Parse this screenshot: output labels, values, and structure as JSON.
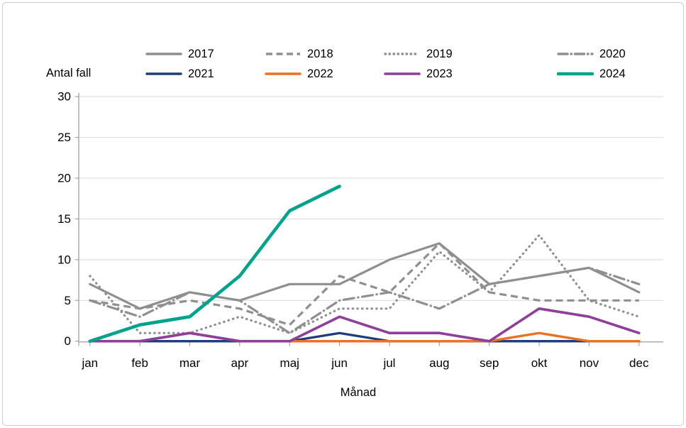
{
  "page": {
    "background": "#ffffff",
    "border_color": "#c9cdd1"
  },
  "chart_data": {
    "type": "line",
    "title": "",
    "ylabel": "Antal fall",
    "xlabel": "Månad",
    "categories": [
      "jan",
      "feb",
      "mar",
      "apr",
      "maj",
      "jun",
      "jul",
      "aug",
      "sep",
      "okt",
      "nov",
      "dec"
    ],
    "y_ticks": [
      0,
      5,
      10,
      15,
      20,
      25,
      30
    ],
    "ylim": [
      0,
      30
    ],
    "grid": "horizontal",
    "legend_position": "top-two-rows",
    "legend_rows": [
      [
        "2017",
        "2018",
        "2019",
        "2020"
      ],
      [
        "2021",
        "2022",
        "2023",
        "2024"
      ]
    ],
    "axis_color": "#a6a6a6",
    "gridline_color": "#d9d9d9",
    "series": [
      {
        "name": "2017",
        "color": "#8f8f8f",
        "style": "solid",
        "width": 3.2,
        "values": [
          7,
          4,
          6,
          5,
          7,
          7,
          10,
          12,
          7,
          8,
          9,
          6
        ]
      },
      {
        "name": "2018",
        "color": "#8f8f8f",
        "style": "dash",
        "width": 3.2,
        "values": [
          5,
          4,
          5,
          4,
          2,
          8,
          6,
          12,
          6,
          5,
          5,
          5
        ]
      },
      {
        "name": "2019",
        "color": "#8f8f8f",
        "style": "dot",
        "width": 3.2,
        "values": [
          8,
          1,
          1,
          3,
          1,
          4,
          4,
          11,
          6,
          13,
          5,
          3
        ]
      },
      {
        "name": "2020",
        "color": "#8f8f8f",
        "style": "dashdot",
        "width": 3.2,
        "values": [
          5,
          3,
          6,
          5,
          1,
          5,
          6,
          4,
          7,
          8,
          9,
          7
        ]
      },
      {
        "name": "2021",
        "color": "#1f3c7d",
        "style": "solid",
        "width": 3.3,
        "values": [
          0,
          0,
          0,
          0,
          0,
          1,
          0,
          0,
          0,
          0,
          0,
          0
        ]
      },
      {
        "name": "2022",
        "color": "#ed7123",
        "style": "solid",
        "width": 3.4,
        "values": [
          0,
          0,
          1,
          0,
          0,
          0,
          0,
          0,
          0,
          1,
          0,
          0
        ]
      },
      {
        "name": "2023",
        "color": "#8e3f97",
        "style": "solid",
        "width": 3.6,
        "values": [
          0,
          0,
          1,
          0,
          0,
          3,
          1,
          1,
          0,
          4,
          3,
          1
        ]
      },
      {
        "name": "2024",
        "color": "#00a28c",
        "style": "solid",
        "width": 4.6,
        "values": [
          0,
          2,
          3,
          8,
          16,
          19
        ]
      }
    ]
  }
}
